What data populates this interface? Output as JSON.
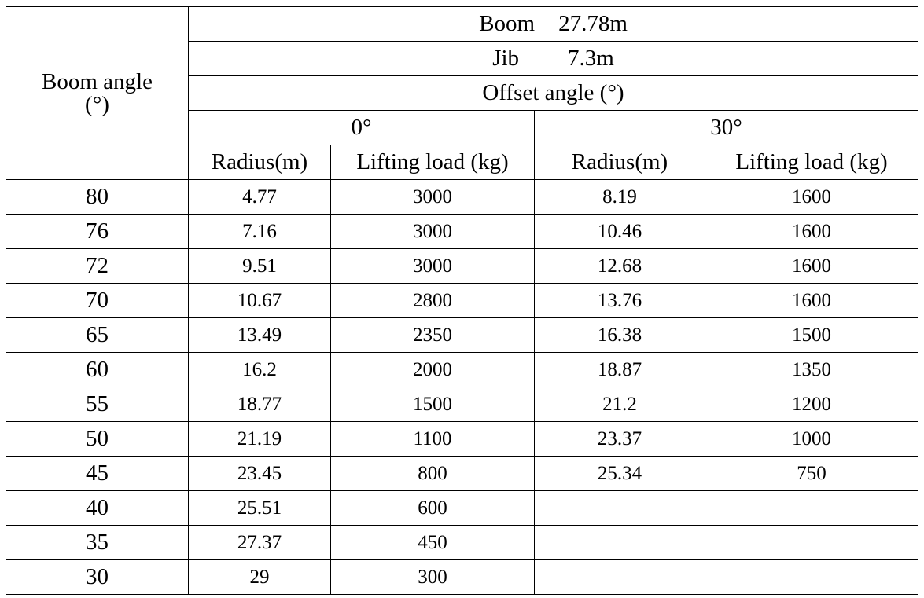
{
  "table": {
    "header": {
      "boom_angle_label": "Boom angle",
      "boom_angle_unit": "(°)",
      "boom_label": "Boom",
      "boom_value": "27.78m",
      "jib_label": "Jib",
      "jib_value": "7.3m",
      "offset_angle_label": "Offset angle (°)",
      "offset_groups": [
        "0°",
        "30°"
      ],
      "radius_col": "Radius(m)",
      "load_col": "Lifting load (kg)"
    },
    "rows": [
      {
        "angle": "80",
        "r0": "4.77",
        "l0": "3000",
        "r30": "8.19",
        "l30": "1600"
      },
      {
        "angle": "76",
        "r0": "7.16",
        "l0": "3000",
        "r30": "10.46",
        "l30": "1600"
      },
      {
        "angle": "72",
        "r0": "9.51",
        "l0": "3000",
        "r30": "12.68",
        "l30": "1600"
      },
      {
        "angle": "70",
        "r0": "10.67",
        "l0": "2800",
        "r30": "13.76",
        "l30": "1600"
      },
      {
        "angle": "65",
        "r0": "13.49",
        "l0": "2350",
        "r30": "16.38",
        "l30": "1500"
      },
      {
        "angle": "60",
        "r0": "16.2",
        "l0": "2000",
        "r30": "18.87",
        "l30": "1350"
      },
      {
        "angle": "55",
        "r0": "18.77",
        "l0": "1500",
        "r30": "21.2",
        "l30": "1200"
      },
      {
        "angle": "50",
        "r0": "21.19",
        "l0": "1100",
        "r30": "23.37",
        "l30": "1000"
      },
      {
        "angle": "45",
        "r0": "23.45",
        "l0": "800",
        "r30": "25.34",
        "l30": "750"
      },
      {
        "angle": "40",
        "r0": "25.51",
        "l0": "600",
        "r30": "",
        "l30": ""
      },
      {
        "angle": "35",
        "r0": "27.37",
        "l0": "450",
        "r30": "",
        "l30": ""
      },
      {
        "angle": "30",
        "r0": "29",
        "l0": "300",
        "r30": "",
        "l30": ""
      }
    ]
  }
}
